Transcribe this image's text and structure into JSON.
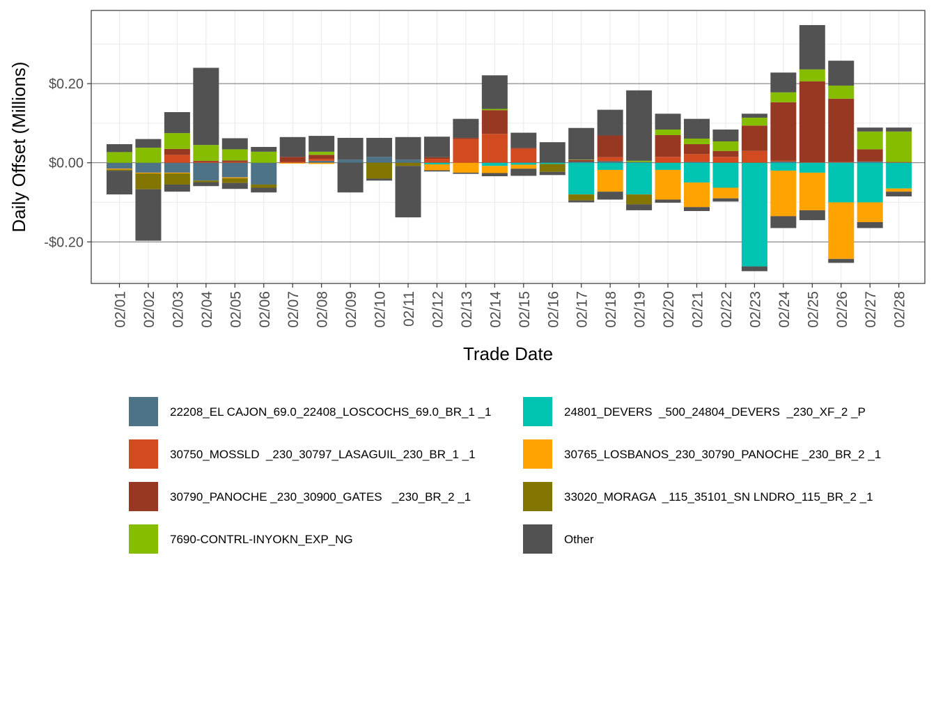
{
  "chart_data": {
    "type": "bar",
    "stacked": true,
    "title": "",
    "xlabel": "Trade Date",
    "ylabel": "Daily Offset (Millions)",
    "ylim": [
      -0.305,
      0.385
    ],
    "yticks": [
      -0.2,
      0.0,
      0.2
    ],
    "ytick_labels": [
      "-$0.20",
      "$0.00",
      "$0.20"
    ],
    "grid": true,
    "legend_position": "bottom",
    "categories": [
      "02/01",
      "02/02",
      "02/03",
      "02/04",
      "02/05",
      "02/06",
      "02/07",
      "02/08",
      "02/09",
      "02/10",
      "02/11",
      "02/12",
      "02/13",
      "02/14",
      "02/15",
      "02/16",
      "02/17",
      "02/18",
      "02/19",
      "02/20",
      "02/21",
      "02/22",
      "02/23",
      "02/24",
      "02/25",
      "02/26",
      "02/27",
      "02/28"
    ],
    "series": [
      {
        "name": "22208_EL CAJON_69.0_22408_LOSCOCHS_69.0_BR_1 _1",
        "color": "#4e7386",
        "values": [
          -0.015,
          -0.025,
          -0.025,
          -0.045,
          -0.037,
          -0.055,
          0,
          0.005,
          0.008,
          0.015,
          0.008,
          0,
          0,
          0,
          0,
          0,
          0.003,
          0.004,
          0.002,
          0,
          0.002,
          0,
          0,
          0.003,
          0,
          0.001,
          0.003,
          0
        ]
      },
      {
        "name": "30750_MOSSLD  _230_30797_LASAGUIL_230_BR_1 _1",
        "color": "#d24a20",
        "values": [
          0,
          0,
          0.02,
          0.002,
          0.002,
          0,
          0.002,
          0.005,
          0,
          0,
          0,
          0.01,
          0.06,
          0.073,
          0.035,
          0,
          0,
          0.01,
          0,
          0.015,
          0.02,
          0.015,
          0.03,
          0.002,
          0.001,
          0.001,
          0.001,
          0.001
        ]
      },
      {
        "name": "30790_PANOCHE _230_30900_GATES   _230_BR_2 _1",
        "color": "#973823",
        "values": [
          0,
          0,
          0.015,
          0.003,
          0.004,
          0,
          0.013,
          0.01,
          0,
          0,
          0,
          0.004,
          0.003,
          0.06,
          0.003,
          0,
          0.004,
          0.055,
          0,
          0.055,
          0.025,
          0.015,
          0.064,
          0.148,
          0.205,
          0.16,
          0.03,
          0.001
        ]
      },
      {
        "name": "7690-CONTRL-INYOKN_EXP_NG",
        "color": "#86bd00",
        "values": [
          0.027,
          0.038,
          0.04,
          0.04,
          0.028,
          0.028,
          0,
          0.008,
          0,
          0,
          0,
          0,
          0,
          0.003,
          0,
          0,
          0.001,
          0,
          0.003,
          0.014,
          0.014,
          0.024,
          0.02,
          0.025,
          0.03,
          0.033,
          0.045,
          0.077
        ]
      },
      {
        "name": "Other",
        "color": "#525252",
        "values": [
          0.02,
          0.022,
          0.053,
          0.195,
          0.028,
          0.012,
          0.05,
          0.04,
          0.055,
          0.048,
          0.057,
          0.052,
          0.048,
          0.085,
          0.038,
          0.052,
          0.08,
          0.065,
          0.178,
          0.04,
          0.05,
          0.03,
          0.01,
          0.05,
          0.112,
          0.063,
          0.01,
          0.01
        ]
      },
      {
        "name": "24801_DEVERS  _500_24804_DEVERS  _230_XF_2 _P",
        "color": "#00c3b1",
        "values": [
          0,
          0,
          0,
          0,
          0,
          0,
          0,
          0,
          0,
          0,
          0,
          -0.004,
          0,
          -0.008,
          -0.005,
          -0.003,
          -0.08,
          -0.018,
          -0.08,
          -0.018,
          -0.05,
          -0.063,
          -0.262,
          -0.02,
          -0.025,
          -0.1,
          -0.1,
          -0.065
        ]
      },
      {
        "name": "30765_LOSBANOS_230_30790_PANOCHE _230_BR_2 _1",
        "color": "#ffa300",
        "values": [
          -0.002,
          -0.002,
          -0.002,
          0,
          -0.002,
          0,
          -0.002,
          -0.003,
          0,
          0,
          0,
          -0.015,
          -0.025,
          -0.018,
          -0.01,
          0,
          0,
          -0.055,
          0,
          -0.075,
          -0.062,
          -0.027,
          0,
          -0.115,
          -0.095,
          -0.143,
          -0.05,
          -0.008
        ]
      },
      {
        "name": "33020_MORAGA  _115_35101_SN LNDRO_115_BR_2 _1",
        "color": "#827500",
        "values": [
          -0.003,
          -0.04,
          -0.028,
          -0.004,
          -0.012,
          -0.008,
          0,
          0,
          0,
          -0.04,
          -0.008,
          0,
          0,
          0,
          0,
          -0.02,
          -0.015,
          0,
          -0.025,
          0,
          0,
          0,
          0,
          0,
          0,
          0,
          0,
          0
        ]
      },
      {
        "name": "Other",
        "color": "#525252",
        "values": [
          -0.06,
          -0.13,
          -0.018,
          -0.01,
          -0.015,
          -0.012,
          0,
          0,
          -0.075,
          -0.005,
          -0.13,
          -0.003,
          -0.003,
          -0.008,
          -0.018,
          -0.008,
          -0.005,
          -0.02,
          -0.015,
          -0.008,
          -0.01,
          -0.008,
          -0.012,
          -0.03,
          -0.025,
          -0.01,
          -0.015,
          -0.012
        ]
      }
    ],
    "legend": [
      {
        "label": "22208_EL CAJON_69.0_22408_LOSCOCHS_69.0_BR_1 _1",
        "color": "#4e7386"
      },
      {
        "label": "24801_DEVERS  _500_24804_DEVERS  _230_XF_2 _P",
        "color": "#00c3b1"
      },
      {
        "label": "30750_MOSSLD  _230_30797_LASAGUIL_230_BR_1 _1",
        "color": "#d24a20"
      },
      {
        "label": "30765_LOSBANOS_230_30790_PANOCHE _230_BR_2 _1",
        "color": "#ffa300"
      },
      {
        "label": "30790_PANOCHE _230_30900_GATES   _230_BR_2 _1",
        "color": "#973823"
      },
      {
        "label": "33020_MORAGA  _115_35101_SN LNDRO_115_BR_2 _1",
        "color": "#827500"
      },
      {
        "label": "7690-CONTRL-INYOKN_EXP_NG",
        "color": "#86bd00"
      },
      {
        "label": "Other",
        "color": "#525252"
      }
    ]
  }
}
